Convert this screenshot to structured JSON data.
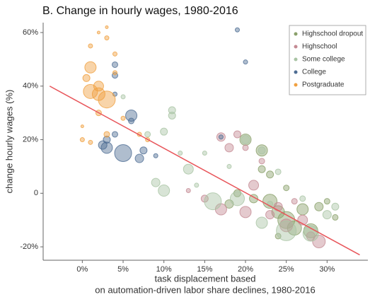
{
  "chart_data": {
    "type": "scatter",
    "title": "B. Change in hourly wages, 1980-2016",
    "y_label": "change hourly wages (%)",
    "x_label": [
      "task displacement based",
      "on automation-driven labor share declines, 1980-2016"
    ],
    "xlim": [
      -4.8,
      35
    ],
    "ylim": [
      -25,
      63.7
    ],
    "xticks": [
      {
        "value": 0,
        "label": "0%"
      },
      {
        "value": 5,
        "label": "5%"
      },
      {
        "value": 10,
        "label": "10%"
      },
      {
        "value": 15,
        "label": "15%"
      },
      {
        "value": 20,
        "label": "20%"
      },
      {
        "value": 25,
        "label": "25%"
      },
      {
        "value": 30,
        "label": "30%"
      }
    ],
    "yticks": [
      {
        "value": -20,
        "label": "-20%"
      },
      0,
      {
        "value": 20,
        "label": "20%"
      },
      {
        "value": 40,
        "label": "40%"
      },
      {
        "value": 60,
        "label": "60%"
      }
    ],
    "legend_position": "top-right",
    "fit_line": {
      "x": [
        -4,
        34
      ],
      "y": [
        40,
        -23
      ],
      "color": "#e8555a"
    },
    "series": [
      {
        "name": "Highschool dropout",
        "color": "#8aa06a",
        "x": [
          20,
          22,
          23,
          25,
          26,
          27,
          28,
          29,
          21,
          23,
          24,
          22,
          19,
          30,
          31,
          25,
          18,
          24
        ],
        "values": [
          20,
          16,
          7,
          -10,
          -13,
          -6,
          -14,
          -5,
          -2,
          -3,
          -7,
          9,
          0,
          -3,
          -9,
          2,
          -4,
          -16
        ],
        "sizes": [
          8,
          8,
          5,
          12,
          10,
          8,
          10,
          6,
          6,
          10,
          9,
          5,
          5,
          4,
          4,
          4,
          6,
          4
        ]
      },
      {
        "name": "Highschool",
        "color": "#c48a93",
        "x": [
          17,
          18,
          19,
          20,
          17,
          21,
          23,
          24,
          25,
          27,
          29,
          22,
          15,
          26,
          20,
          28,
          13
        ],
        "values": [
          21,
          17,
          22,
          -7,
          -6,
          3,
          -8,
          -5,
          -12,
          -10,
          -18,
          12,
          -2,
          -3,
          17,
          -16,
          1
        ],
        "sizes": [
          6,
          6,
          5,
          8,
          8,
          7,
          6,
          6,
          9,
          7,
          9,
          4,
          5,
          4,
          4,
          6,
          3
        ]
      },
      {
        "name": "Some college",
        "color": "#a9c4a4",
        "x": [
          10,
          13,
          16,
          19,
          22,
          25,
          28,
          30,
          10,
          12,
          9,
          11,
          8,
          15,
          20,
          22,
          24,
          27,
          31,
          14,
          18,
          11,
          5,
          23
        ],
        "values": [
          1,
          9,
          -3,
          -2,
          -11,
          -14,
          -15,
          -8,
          23,
          15,
          4,
          29,
          22,
          15,
          20,
          16,
          8,
          -2,
          -5,
          3,
          10,
          31,
          36,
          -4
        ],
        "sizes": [
          8,
          7,
          12,
          10,
          8,
          14,
          11,
          6,
          5,
          3,
          6,
          5,
          4,
          3,
          6,
          5,
          4,
          4,
          5,
          3,
          3,
          5,
          3,
          4
        ]
      },
      {
        "name": "College",
        "color": "#4e6d93",
        "x": [
          4,
          3,
          5,
          6,
          7,
          7.5,
          4,
          2.5,
          3,
          4,
          6,
          9,
          17,
          19,
          20,
          4
        ],
        "values": [
          48,
          17,
          15,
          29,
          13,
          16,
          44,
          18,
          20,
          22,
          27,
          14,
          21,
          61,
          49,
          37
        ],
        "sizes": [
          4,
          8,
          12,
          8,
          6,
          5,
          4,
          6,
          5,
          4,
          4,
          3,
          3,
          3,
          3,
          3
        ]
      },
      {
        "name": "Postgraduate",
        "color": "#f0a040",
        "x": [
          1,
          1,
          2,
          3,
          2,
          0.5,
          0,
          2,
          1,
          3,
          4,
          0,
          5,
          7,
          8,
          3,
          1,
          4,
          2,
          3
        ],
        "values": [
          47,
          38,
          37,
          35,
          40,
          43,
          20,
          30,
          55,
          58,
          52,
          25,
          28,
          22,
          20,
          22,
          19,
          45,
          60,
          62
        ],
        "sizes": [
          8,
          10,
          9,
          12,
          7,
          5,
          3,
          4,
          3,
          3,
          3,
          2,
          3,
          3,
          3,
          4,
          3,
          3,
          2,
          2
        ]
      }
    ]
  }
}
